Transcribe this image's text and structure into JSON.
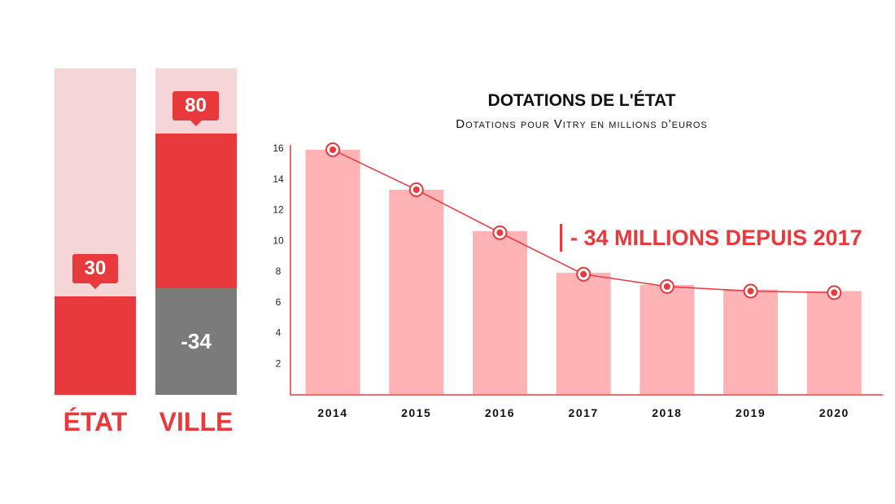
{
  "comparison": {
    "etat": {
      "label": "ÉTAT",
      "value_label": "30"
    },
    "ville": {
      "label": "VILLE",
      "value_label": "80",
      "difference_label": "-34"
    }
  },
  "colors": {
    "accent": "#e8393d",
    "light": "#f6d5d6",
    "bar": "#ffb3b5",
    "grey": "#7b7b7b"
  },
  "chart_data": {
    "type": "bar",
    "title": "DOTATIONS DE L'ÉTAT",
    "subtitle": "Dotations pour Vitry en millions d'euros",
    "annotation": "- 34 MILLIONS DEPUIS  2017",
    "categories": [
      "2014",
      "2015",
      "2016",
      "2017",
      "2018",
      "2019",
      "2020"
    ],
    "values": [
      15.9,
      13.3,
      10.6,
      7.9,
      7.1,
      6.8,
      6.7
    ],
    "line_values": [
      15.9,
      13.3,
      10.5,
      7.8,
      7.0,
      6.7,
      6.6
    ],
    "y_ticks": [
      "2",
      "4",
      "6",
      "8",
      "10",
      "12",
      "14",
      "16"
    ],
    "ylim": [
      0,
      16
    ],
    "grid": false
  }
}
